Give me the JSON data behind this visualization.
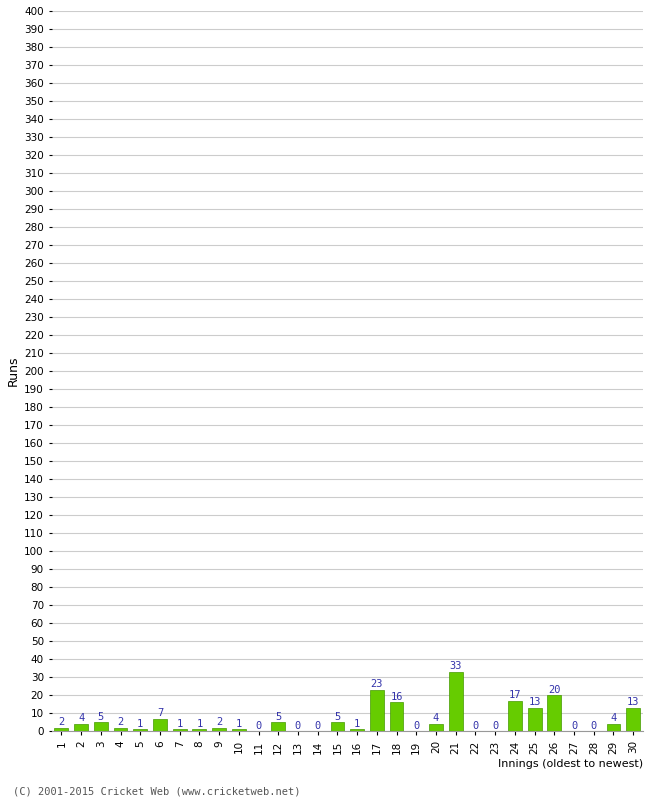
{
  "xlabel": "Innings (oldest to newest)",
  "ylabel": "Runs",
  "innings": [
    1,
    2,
    3,
    4,
    5,
    6,
    7,
    8,
    9,
    10,
    11,
    12,
    13,
    14,
    15,
    16,
    17,
    18,
    19,
    20,
    21,
    22,
    23,
    24,
    25,
    26,
    27,
    28,
    29,
    30
  ],
  "values": [
    2,
    4,
    5,
    2,
    1,
    7,
    1,
    1,
    2,
    1,
    0,
    5,
    0,
    0,
    5,
    1,
    23,
    16,
    0,
    4,
    33,
    0,
    0,
    17,
    13,
    20,
    0,
    0,
    4,
    13
  ],
  "bar_color": "#66cc00",
  "bar_edge_color": "#449900",
  "label_color": "#3333aa",
  "ylim": [
    0,
    400
  ],
  "background_color": "#ffffff",
  "grid_color": "#cccccc",
  "footer": "(C) 2001-2015 Cricket Web (www.cricketweb.net)"
}
